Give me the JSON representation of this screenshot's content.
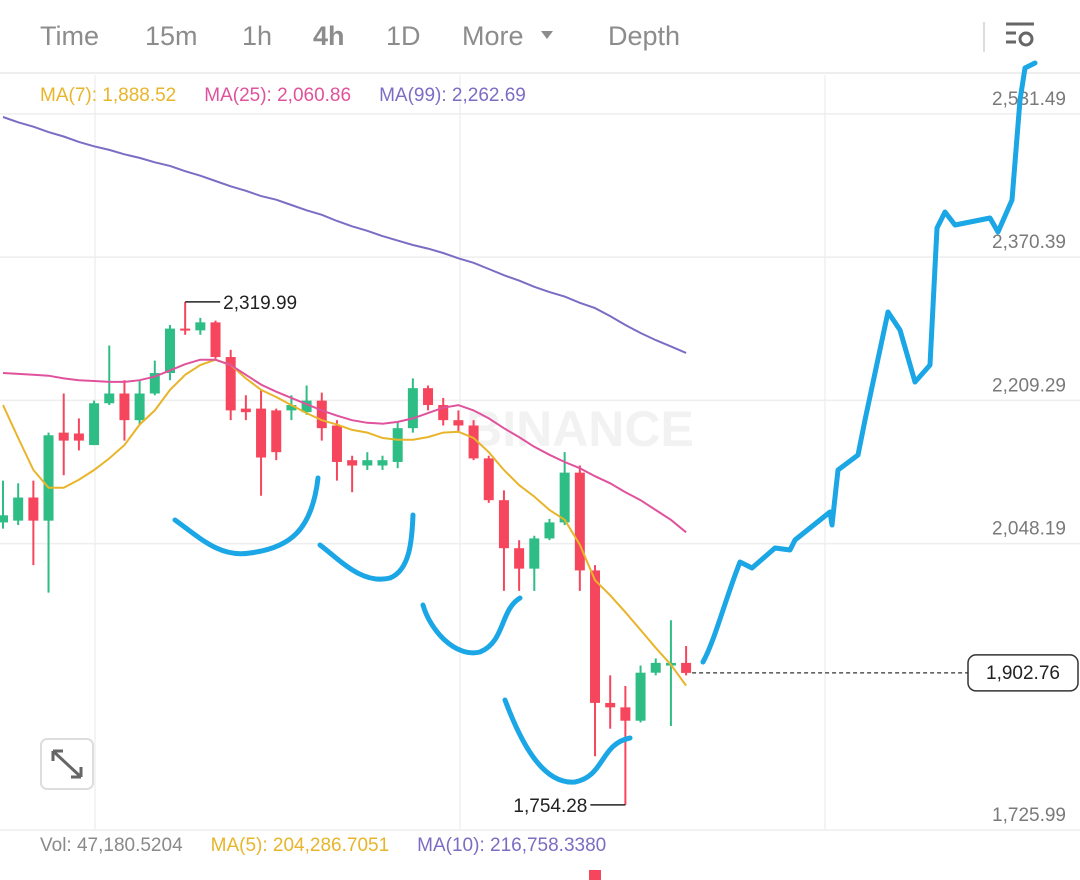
{
  "tabs": [
    "Time",
    "15m",
    "1h",
    "4h",
    "1D",
    "More",
    "Depth"
  ],
  "active_tab": 3,
  "chart_data": {
    "type": "candlestick",
    "watermark": "BINANCE",
    "up_color": "#2ebd85",
    "down_color": "#f6465d",
    "open": [
      2072,
      2074,
      2100,
      2074,
      2173,
      2172,
      2159,
      2206,
      2217,
      2187,
      2217,
      2240,
      2290,
      2288,
      2297,
      2258,
      2200,
      2200,
      2198,
      2198,
      2196,
      2209,
      2181,
      2142,
      2136,
      2136,
      2140,
      2178,
      2223,
      2204,
      2187,
      2181,
      2144,
      2097,
      2043,
      2020,
      2054,
      2072,
      2128,
      2018,
      1869,
      1864,
      1849,
      1903,
      1911,
      1914
    ],
    "high": [
      2119,
      2116,
      2119,
      2173,
      2217,
      2189,
      2209,
      2271,
      2232,
      2232,
      2254,
      2294,
      2319.99,
      2302,
      2299,
      2266,
      2215,
      2221,
      2200,
      2215,
      2226,
      2218,
      2187,
      2147,
      2151,
      2147,
      2185,
      2234,
      2226,
      2212,
      2198,
      2187,
      2147,
      2108,
      2052,
      2057,
      2076,
      2151,
      2136,
      2024,
      1900,
      1888,
      1911,
      1919,
      1962,
      1933
    ],
    "low": [
      2065,
      2069,
      2024,
      1993,
      2125,
      2153,
      2159,
      2204,
      2164,
      2181,
      2215,
      2232,
      2283,
      2283,
      2254,
      2187,
      2187,
      2102,
      2142,
      2187,
      2193,
      2164,
      2119,
      2106,
      2131,
      2131,
      2133,
      2173,
      2198,
      2181,
      2173,
      2142,
      2094,
      1995,
      1995,
      1995,
      2052,
      2069,
      1995,
      1809,
      1840,
      1754.28,
      1847,
      1900,
      1843,
      1900
    ],
    "close": [
      2080,
      2100,
      2074,
      2170,
      2164,
      2164,
      2206,
      2217,
      2187,
      2217,
      2240,
      2290,
      2288,
      2297,
      2258,
      2198,
      2196,
      2145,
      2151,
      2204,
      2209,
      2178,
      2140,
      2136,
      2142,
      2142,
      2178,
      2223,
      2204,
      2187,
      2181,
      2144,
      2097,
      2043,
      2020,
      2054,
      2072,
      2128,
      2018,
      1869,
      1864,
      1849,
      1903,
      1914,
      1914,
      1902.76
    ],
    "series": [
      {
        "name": "MA(7): 1,888.52",
        "color": "#e8b52a",
        "values": [
          2204,
          2167,
          2131,
          2111,
          2111,
          2120,
          2131,
          2144,
          2159,
          2182,
          2198,
          2221,
          2238,
          2249,
          2255,
          2249,
          2234,
          2221,
          2213,
          2204,
          2195,
          2187,
          2182,
          2176,
          2173,
          2167,
          2165,
          2165,
          2168,
          2173,
          2174,
          2167,
          2151,
          2131,
          2114,
          2101,
          2086,
          2075,
          2047,
          2007,
          1990,
          1971,
          1951,
          1931,
          1912,
          1888.52
        ]
      },
      {
        "name": "MA(25): 2,060.86",
        "color": "#e0529c",
        "values": [
          2240,
          2239,
          2238,
          2237,
          2234,
          2232,
          2231,
          2230,
          2230,
          2232,
          2236,
          2243,
          2250,
          2255,
          2255,
          2249,
          2238,
          2227,
          2219,
          2212,
          2205,
          2198,
          2192,
          2187,
          2184,
          2183,
          2185,
          2189,
          2195,
          2201,
          2204,
          2198,
          2189,
          2178,
          2168,
          2157,
          2148,
          2140,
          2133,
          2124,
          2116,
          2106,
          2097,
          2086,
          2075,
          2060.86
        ]
      },
      {
        "name": "MA(99): 2,262.69",
        "color": "#7d6cc4",
        "values": [
          2528,
          2522,
          2517,
          2511,
          2506,
          2500,
          2495,
          2491,
          2486,
          2482,
          2477,
          2473,
          2467,
          2462,
          2456,
          2450,
          2445,
          2439,
          2435,
          2429,
          2423,
          2418,
          2411,
          2405,
          2400,
          2394,
          2389,
          2384,
          2380,
          2375,
          2369,
          2364,
          2357,
          2350,
          2344,
          2337,
          2331,
          2326,
          2319,
          2313,
          2304,
          2294,
          2285,
          2277,
          2270,
          2262.69
        ]
      }
    ],
    "ylim": [
      1718.2,
      2575.2
    ],
    "yticks": [
      {
        "value": 2531.49,
        "label": "2,531.49"
      },
      {
        "value": 2370.39,
        "label": "2,370.39"
      },
      {
        "value": 2209.29,
        "label": "2,209.29"
      },
      {
        "value": 2048.19,
        "label": "2,048.19"
      },
      {
        "value": 1725.99,
        "label": "1,725.99"
      }
    ],
    "grid": true,
    "last_price": {
      "value": 1902.76,
      "label": "1,902.76"
    },
    "high_label": "2,319.99",
    "low_label": "1,754.28",
    "volume_header": [
      {
        "text": "Vol: 47,180.5204",
        "color": "#8a8a8a"
      },
      {
        "text": "MA(5): 204,286.7051",
        "color": "#e8b52a"
      },
      {
        "text": "MA(10): 216,758.3380",
        "color": "#7d6cc4"
      }
    ]
  }
}
